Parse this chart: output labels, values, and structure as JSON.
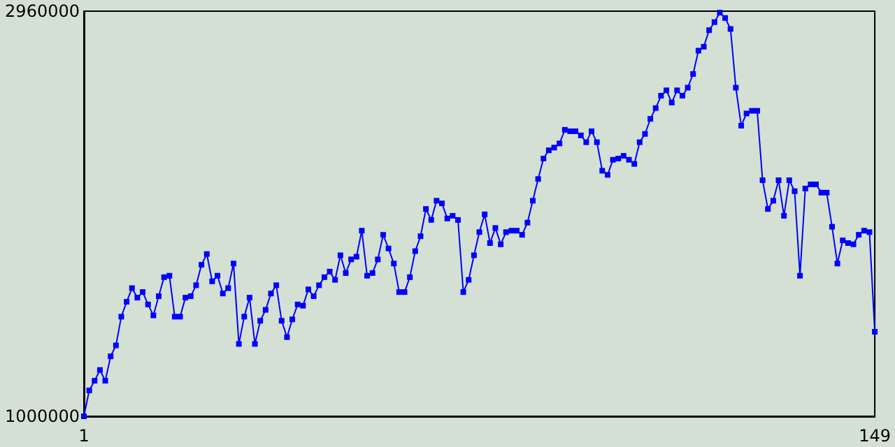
{
  "chart_data": {
    "type": "line",
    "marker": "square",
    "line_style": "solid",
    "grid": false,
    "xlim": [
      1,
      149
    ],
    "xticks": [
      1,
      149
    ],
    "ylim": [
      1000000,
      2960000
    ],
    "yticks": [
      1000000,
      2960000
    ],
    "series": [
      {
        "color": "#0000ff",
        "x": [
          1,
          2,
          3,
          4,
          5,
          6,
          7,
          8,
          9,
          10,
          11,
          12,
          13,
          14,
          15,
          16,
          17,
          18,
          19,
          20,
          21,
          22,
          23,
          24,
          25,
          26,
          27,
          28,
          29,
          30,
          31,
          32,
          33,
          34,
          35,
          36,
          37,
          38,
          39,
          40,
          41,
          42,
          43,
          44,
          45,
          46,
          47,
          48,
          49,
          50,
          51,
          52,
          53,
          54,
          55,
          56,
          57,
          58,
          59,
          60,
          61,
          62,
          63,
          64,
          65,
          66,
          67,
          68,
          69,
          70,
          71,
          72,
          73,
          74,
          75,
          76,
          77,
          78,
          79,
          80,
          81,
          82,
          83,
          84,
          85,
          86,
          87,
          88,
          89,
          90,
          91,
          92,
          93,
          94,
          95,
          96,
          97,
          98,
          99,
          100,
          101,
          102,
          103,
          104,
          105,
          106,
          107,
          108,
          109,
          110,
          111,
          112,
          113,
          114,
          115,
          116,
          117,
          118,
          119,
          120,
          121,
          122,
          123,
          124,
          125,
          126,
          127,
          128,
          129,
          130,
          131,
          132,
          133,
          134,
          135,
          136,
          137,
          138,
          139,
          140,
          141,
          142,
          143,
          144,
          145,
          146,
          147,
          148,
          149
        ],
        "values": [
          1000000,
          1125000,
          1172000,
          1224000,
          1172000,
          1290000,
          1343000,
          1482000,
          1554000,
          1620000,
          1574000,
          1601000,
          1541000,
          1488000,
          1581000,
          1673000,
          1680000,
          1482000,
          1482000,
          1574000,
          1581000,
          1634000,
          1733000,
          1785000,
          1653000,
          1680000,
          1594000,
          1620000,
          1739000,
          1350000,
          1482000,
          1574000,
          1350000,
          1462000,
          1515000,
          1594000,
          1634000,
          1462000,
          1383000,
          1469000,
          1541000,
          1535000,
          1614000,
          1581000,
          1634000,
          1673000,
          1700000,
          1660000,
          1779000,
          1693000,
          1759000,
          1772000,
          1898000,
          1680000,
          1693000,
          1759000,
          1878000,
          1812000,
          1739000,
          1601000,
          1601000,
          1673000,
          1799000,
          1871000,
          2003000,
          1950000,
          2043000,
          2030000,
          1957000,
          1970000,
          1950000,
          1601000,
          1660000,
          1779000,
          1891000,
          1977000,
          1838000,
          1911000,
          1832000,
          1891000,
          1898000,
          1898000,
          1878000,
          1937000,
          2043000,
          2148000,
          2247000,
          2287000,
          2300000,
          2320000,
          2386000,
          2379000,
          2379000,
          2359000,
          2326000,
          2379000,
          2326000,
          2188000,
          2168000,
          2241000,
          2247000,
          2260000,
          2241000,
          2221000,
          2326000,
          2366000,
          2439000,
          2491000,
          2551000,
          2577000,
          2518000,
          2577000,
          2551000,
          2590000,
          2656000,
          2769000,
          2788000,
          2868000,
          2907000,
          2953000,
          2927000,
          2874000,
          2590000,
          2406000,
          2465000,
          2478000,
          2478000,
          2142000,
          2003000,
          2043000,
          2142000,
          1970000,
          2142000,
          2089000,
          1680000,
          2102000,
          2122000,
          2122000,
          2082000,
          2082000,
          1917000,
          1739000,
          1851000,
          1838000,
          1832000,
          1878000,
          1898000,
          1891000,
          1409000
        ]
      }
    ]
  }
}
